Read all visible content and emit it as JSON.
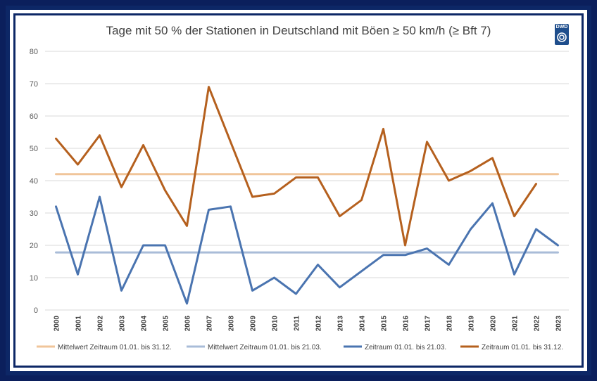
{
  "logo": {
    "text": "DWD"
  },
  "chart_data": {
    "type": "line",
    "title": "Tage mit 50 % der Stationen in Deutschland mit Böen ≥ 50 km/h (≥ Bft 7)",
    "xlabel": "",
    "ylabel": "",
    "ylim": [
      0,
      80
    ],
    "yticks": [
      0,
      10,
      20,
      30,
      40,
      50,
      60,
      70,
      80
    ],
    "grid": true,
    "legend_position": "bottom",
    "categories": [
      "2000",
      "2001",
      "2002",
      "2003",
      "2004",
      "2005",
      "2006",
      "2007",
      "2008",
      "2009",
      "2010",
      "2011",
      "2012",
      "2013",
      "2014",
      "2015",
      "2016",
      "2017",
      "2018",
      "2019",
      "2020",
      "2021",
      "2022",
      "2023"
    ],
    "series": [
      {
        "name": "Mittelwert Zeitraum 01.01. bis 31.12.",
        "color": "#f0c59a",
        "type": "mean",
        "values": [
          42,
          42,
          42,
          42,
          42,
          42,
          42,
          42,
          42,
          42,
          42,
          42,
          42,
          42,
          42,
          42,
          42,
          42,
          42,
          42,
          42,
          42,
          42,
          42
        ]
      },
      {
        "name": "Mittelwert Zeitraum 01.01. bis 21.03.",
        "color": "#a9bcd8",
        "type": "mean",
        "values": [
          17.8,
          17.8,
          17.8,
          17.8,
          17.8,
          17.8,
          17.8,
          17.8,
          17.8,
          17.8,
          17.8,
          17.8,
          17.8,
          17.8,
          17.8,
          17.8,
          17.8,
          17.8,
          17.8,
          17.8,
          17.8,
          17.8,
          17.8,
          17.8
        ]
      },
      {
        "name": "Zeitraum 01.01. bis 21.03.",
        "color": "#4a74b0",
        "type": "data",
        "values": [
          32,
          11,
          35,
          6,
          20,
          20,
          2,
          31,
          32,
          6,
          10,
          5,
          14,
          7,
          12,
          17,
          17,
          19,
          14,
          25,
          33,
          11,
          25,
          20
        ]
      },
      {
        "name": "Zeitraum 01.01. bis 31.12.",
        "color": "#b5601e",
        "type": "data",
        "values": [
          53,
          45,
          54,
          38,
          51,
          37,
          26,
          69,
          52,
          35,
          36,
          41,
          41,
          29,
          34,
          56,
          20,
          52,
          40,
          43,
          47,
          29,
          39,
          null
        ]
      }
    ]
  }
}
